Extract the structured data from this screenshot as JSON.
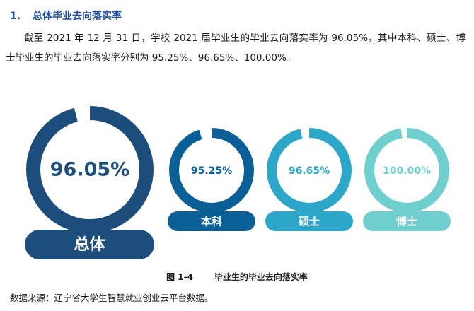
{
  "section": {
    "number": "1.",
    "title": "总体毕业去向落实率",
    "paragraph": "截至 2021 年 12 月 31 日，学校 2021 届毕业生的毕业去向落实率为 96.05%，其中本科、硕士、博士毕业生的毕业去向落实率分别为 95.25%、96.65%、100.00%。"
  },
  "figure": {
    "label": "图 1-4",
    "title": "毕业生的毕业去向落实率"
  },
  "source_note": "数据来源：辽宁省大学生智慧就业创业云平台数据。",
  "chart_data": {
    "type": "pie",
    "categories": [
      "总体",
      "本科",
      "硕士",
      "博士"
    ],
    "values": [
      96.05,
      95.25,
      96.65,
      100.0
    ],
    "value_labels": [
      "96.05%",
      "95.25%",
      "96.65%",
      "100.00%"
    ],
    "unit": "%",
    "max": 100,
    "colors": [
      "#1d4d7a",
      "#0a5f96",
      "#2da7c9",
      "#6fcfcf"
    ],
    "label_colors": [
      "#1d4d7a",
      "#0a5f96",
      "#2da7c9",
      "#6fcfcf"
    ]
  }
}
